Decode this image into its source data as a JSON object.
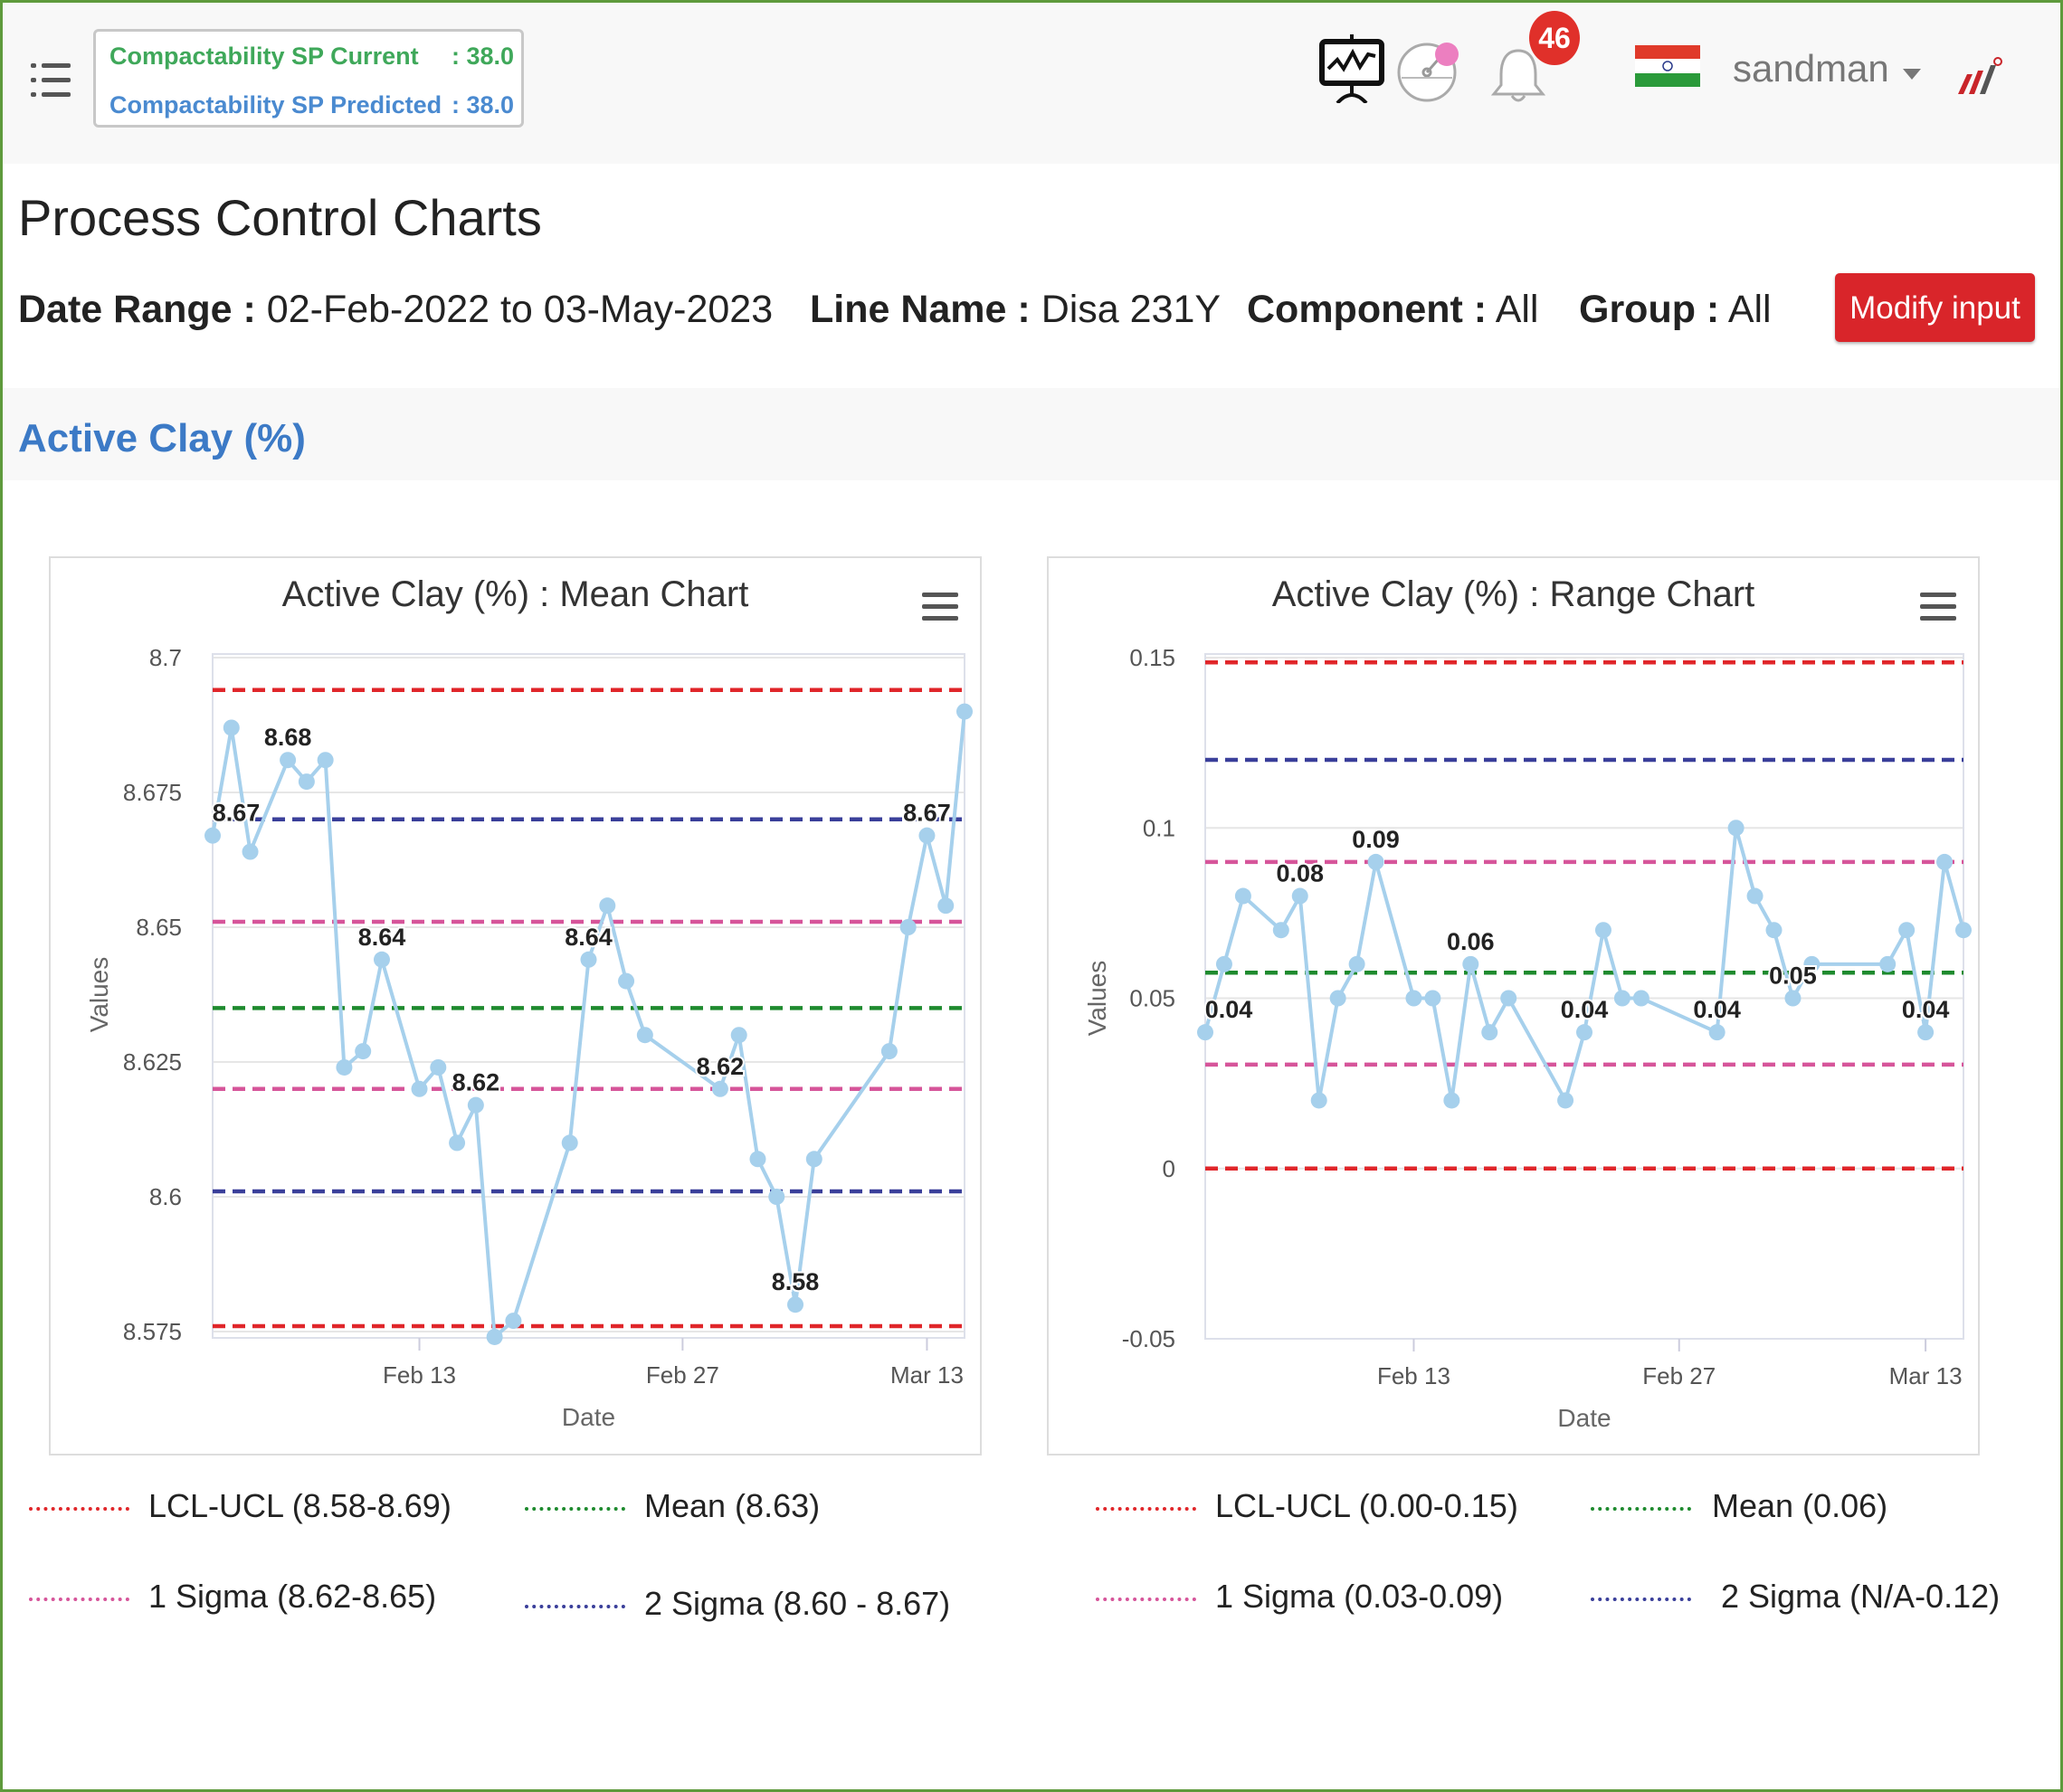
{
  "header": {
    "sp_current_label": "Compactability SP Current",
    "sp_current_value": ": 38.0",
    "sp_predicted_label": "Compactability SP Predicted",
    "sp_predicted_value": ": 38.0",
    "notification_count": "46",
    "username": "sandman",
    "icons": [
      "menu-icon",
      "presentation-chart-icon",
      "gauge-icon",
      "bell-icon",
      "india-flag-icon",
      "caret-down-icon",
      "company-logo"
    ]
  },
  "page": {
    "title": "Process Control Charts",
    "filters": {
      "date_range_label": "Date Range :",
      "date_range_value": "02-Feb-2022 to 03-May-2023",
      "line_name_label": "Line Name :",
      "line_name_value": "Disa 231Y",
      "component_label": "Component :",
      "component_value": "All",
      "group_label": "Group :",
      "group_value": "All"
    },
    "modify_button": "Modify input",
    "section_title": "Active Clay (%)"
  },
  "colors": {
    "accent_red": "#d9252a",
    "ucl_lcl": "#e0262a",
    "mean": "#1e8a2e",
    "sigma1": "#d6559a",
    "sigma2": "#3a3f9a",
    "series": "#a6d0ec",
    "section_blue": "#3c7ac6"
  },
  "chart_data": [
    {
      "type": "line",
      "title": "Active Clay (%) : Mean Chart",
      "xlabel": "Date",
      "ylabel": "Values",
      "ylim": [
        8.575,
        8.7
      ],
      "yticks": [
        "8.575",
        "8.6",
        "8.625",
        "8.65",
        "8.675",
        "8.7"
      ],
      "yticks_values": [
        8.575,
        8.6,
        8.625,
        8.65,
        8.675,
        8.7
      ],
      "xlim_days": [
        0,
        40
      ],
      "xticks": [
        {
          "label": "Feb 13",
          "day": 11
        },
        {
          "label": "Feb 27",
          "day": 25
        },
        {
          "label": "Mar 13",
          "day": 38
        }
      ],
      "series": [
        {
          "name": "Mean",
          "days": [
            0,
            1,
            2,
            4,
            5,
            6,
            7,
            8,
            9,
            11,
            12,
            13,
            14,
            15,
            16,
            19,
            20,
            21,
            22,
            23,
            27,
            28,
            29,
            30,
            31,
            32,
            36,
            37,
            38,
            39,
            40
          ],
          "values": [
            8.667,
            8.687,
            8.664,
            8.681,
            8.677,
            8.681,
            8.624,
            8.627,
            8.644,
            8.62,
            8.624,
            8.61,
            8.617,
            8.574,
            8.577,
            8.61,
            8.644,
            8.654,
            8.64,
            8.63,
            8.62,
            8.63,
            8.607,
            8.6,
            8.58,
            8.607,
            8.627,
            8.65,
            8.667,
            8.654,
            8.69
          ]
        }
      ],
      "data_labels": [
        {
          "day": 0,
          "text": "8.67"
        },
        {
          "day": 4,
          "text": "8.68"
        },
        {
          "day": 9,
          "text": "8.64"
        },
        {
          "day": 14,
          "text": "8.62"
        },
        {
          "day": 20,
          "text": "8.64"
        },
        {
          "day": 27,
          "text": "8.62"
        },
        {
          "day": 31,
          "text": "8.58"
        },
        {
          "day": 38,
          "text": "8.67"
        }
      ],
      "control_lines": [
        {
          "kind": "ucl_lcl",
          "value": 8.694
        },
        {
          "kind": "sigma2",
          "value": 8.67
        },
        {
          "kind": "sigma1",
          "value": 8.651
        },
        {
          "kind": "mean",
          "value": 8.635
        },
        {
          "kind": "sigma1",
          "value": 8.62
        },
        {
          "kind": "sigma2",
          "value": 8.601
        },
        {
          "kind": "ucl_lcl",
          "value": 8.576
        }
      ],
      "legend": [
        {
          "kind": "ucl_lcl",
          "label": "LCL-UCL (8.58-8.69)"
        },
        {
          "kind": "mean",
          "label": "Mean (8.63)"
        },
        {
          "kind": "sigma1",
          "label": "1 Sigma (8.62-8.65)"
        },
        {
          "kind": "sigma2",
          "label": "2 Sigma (8.60 - 8.67)"
        }
      ]
    },
    {
      "type": "line",
      "title": "Active Clay (%) : Range Chart",
      "xlabel": "Date",
      "ylabel": "Values",
      "ylim": [
        -0.05,
        0.15
      ],
      "yticks": [
        "-0.05",
        "0",
        "0.05",
        "0.1",
        "0.15"
      ],
      "yticks_values": [
        -0.05,
        0,
        0.05,
        0.1,
        0.15
      ],
      "xlim_days": [
        0,
        40
      ],
      "xticks": [
        {
          "label": "Feb 13",
          "day": 11
        },
        {
          "label": "Feb 27",
          "day": 25
        },
        {
          "label": "Mar 13",
          "day": 38
        }
      ],
      "series": [
        {
          "name": "Range",
          "days": [
            0,
            1,
            2,
            4,
            5,
            6,
            7,
            8,
            9,
            11,
            12,
            13,
            14,
            15,
            16,
            19,
            20,
            21,
            22,
            23,
            27,
            28,
            29,
            30,
            31,
            32,
            36,
            37,
            38,
            39,
            40
          ],
          "values": [
            0.04,
            0.06,
            0.08,
            0.07,
            0.08,
            0.02,
            0.05,
            0.06,
            0.09,
            0.05,
            0.05,
            0.02,
            0.06,
            0.04,
            0.05,
            0.02,
            0.04,
            0.07,
            0.05,
            0.05,
            0.04,
            0.1,
            0.08,
            0.07,
            0.05,
            0.06,
            0.06,
            0.07,
            0.04,
            0.09,
            0.07
          ]
        }
      ],
      "data_labels": [
        {
          "day": 0,
          "text": "0.04"
        },
        {
          "day": 5,
          "text": "0.08"
        },
        {
          "day": 9,
          "text": "0.09"
        },
        {
          "day": 14,
          "text": "0.06"
        },
        {
          "day": 20,
          "text": "0.04"
        },
        {
          "day": 27,
          "text": "0.04"
        },
        {
          "day": 31,
          "text": "0.05"
        },
        {
          "day": 38,
          "text": "0.04"
        }
      ],
      "control_lines": [
        {
          "kind": "ucl_lcl",
          "value": 0.1486
        },
        {
          "kind": "sigma2",
          "value": 0.12
        },
        {
          "kind": "sigma1",
          "value": 0.09
        },
        {
          "kind": "mean",
          "value": 0.0575
        },
        {
          "kind": "sigma1",
          "value": 0.0305
        },
        {
          "kind": "ucl_lcl",
          "value": 0.0
        }
      ],
      "legend": [
        {
          "kind": "ucl_lcl",
          "label": "LCL-UCL (0.00-0.15)"
        },
        {
          "kind": "mean",
          "label": "Mean (0.06)"
        },
        {
          "kind": "sigma1",
          "label": "1 Sigma (0.03-0.09)"
        },
        {
          "kind": "sigma2",
          "label": "2 Sigma (N/A-0.12)"
        }
      ]
    }
  ]
}
